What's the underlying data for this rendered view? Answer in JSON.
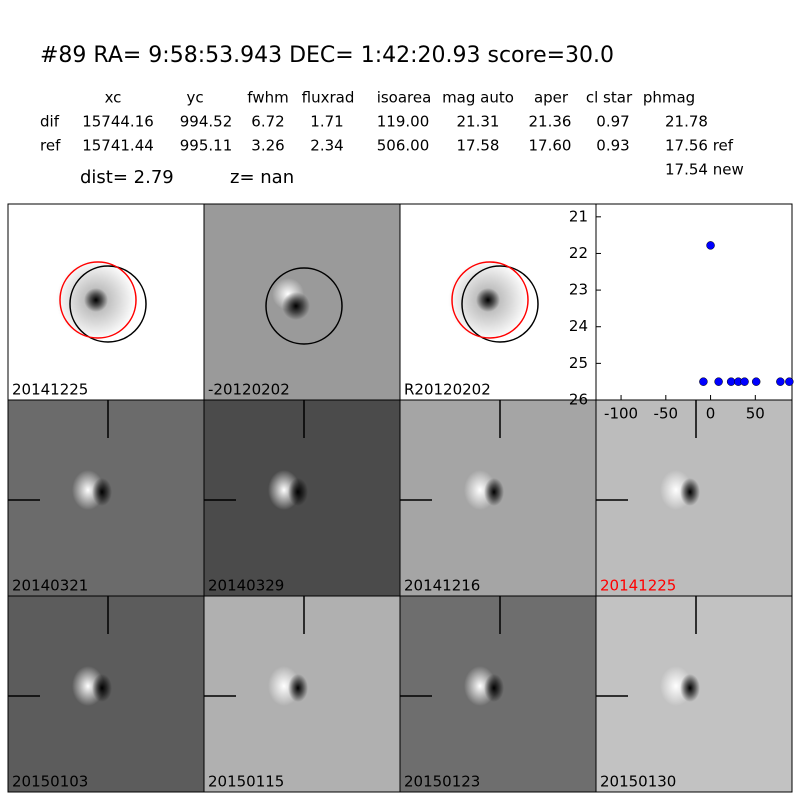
{
  "header": {
    "title": "#89   RA= 9:58:53.943 DEC= 1:42:20.93      score=30.0",
    "columns": [
      "xc",
      "yc",
      "fwhm",
      "fluxrad",
      "isoarea",
      "mag auto",
      "aper",
      "cl star",
      "phmag"
    ],
    "rows": [
      [
        "dif",
        "15744.16",
        "994.52",
        "6.72",
        "1.71",
        "119.00",
        "21.31",
        "21.36",
        "0.97",
        "21.78"
      ],
      [
        "ref",
        "15741.44",
        "995.11",
        "3.26",
        "2.34",
        "506.00",
        "17.58",
        "17.60",
        "0.93",
        "17.56 ref"
      ]
    ],
    "extra": "17.54 new",
    "dist": "dist=  2.79",
    "z": "z=   nan"
  },
  "panels": [
    {
      "label": "20141225"
    },
    {
      "label": "-20120202"
    },
    {
      "label": "R20120202"
    },
    {
      "label": "20140321"
    },
    {
      "label": "20140329"
    },
    {
      "label": "20141216"
    },
    {
      "label": "20141225",
      "label_color": "#ff0000"
    },
    {
      "label": "20150103"
    },
    {
      "label": "20150115"
    },
    {
      "label": "20150123"
    },
    {
      "label": "20150130"
    }
  ],
  "chart_data": {
    "type": "scatter",
    "x": [
      0,
      -8,
      9,
      23,
      31,
      38,
      51,
      78,
      88
    ],
    "values": [
      21.78,
      25.5,
      25.5,
      25.5,
      25.5,
      25.5,
      25.5,
      25.5,
      25.5
    ],
    "color": "#0000ff",
    "xlim": [
      -128,
      91
    ],
    "ylim": [
      26,
      20.65
    ],
    "xticks": [
      -100,
      -50,
      0,
      50
    ],
    "yticks": [
      21,
      22,
      23,
      24,
      25,
      26
    ]
  }
}
